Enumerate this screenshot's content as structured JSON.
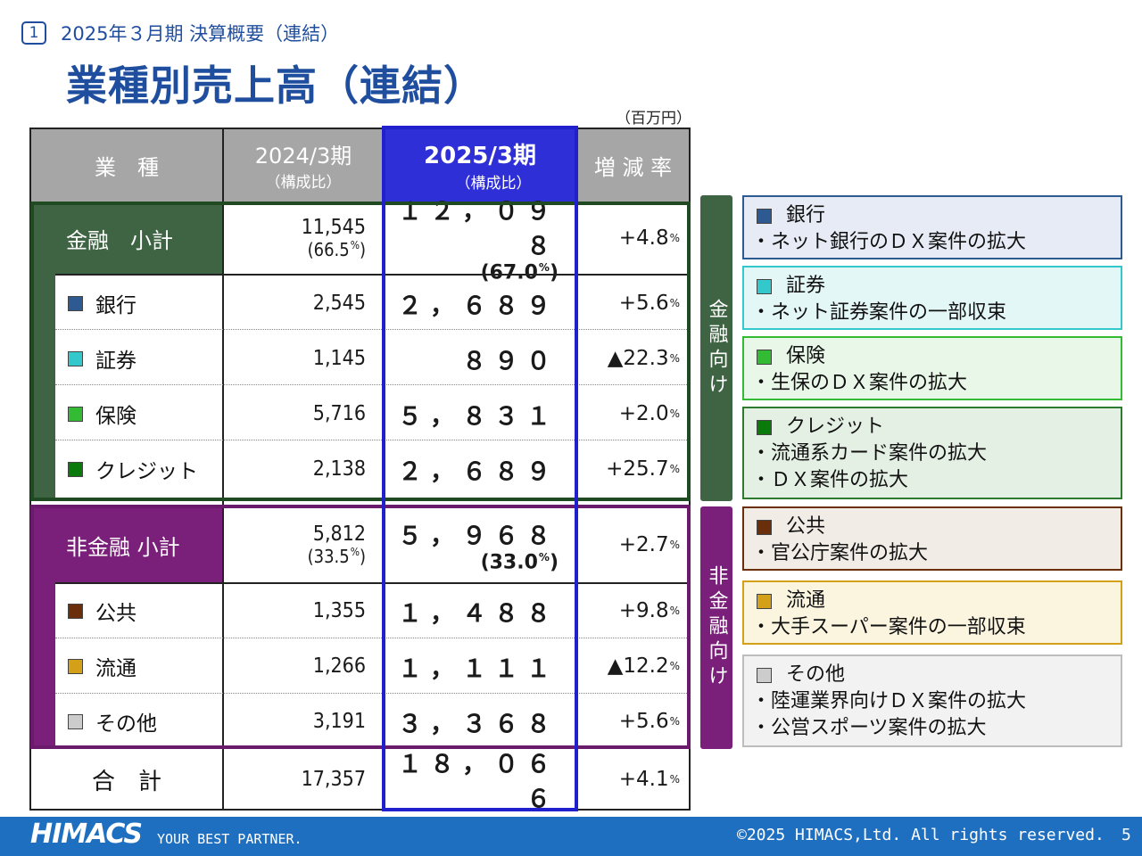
{
  "header": {
    "section_number": "1",
    "subtitle": "2025年３月期 決算概要（連結）",
    "title": "業種別売上高（連結）",
    "unit": "（百万円）"
  },
  "table": {
    "col_category": "業　種",
    "col_prev": "2024/3期",
    "col_prev_sub": "（構成比）",
    "col_curr": "2025/3期",
    "col_curr_sub": "（構成比）",
    "col_rate": "増 減 率",
    "pct_sign": "%",
    "finance_subtotal": {
      "label": "金融　小計",
      "prev": "11,545",
      "prev_ratio": "(66.5",
      "curr": "１２，０９８",
      "curr_ratio": "(67.0",
      "rate": "+4.8"
    },
    "finance_rows": [
      {
        "label": "銀行",
        "color": "#2e5a92",
        "prev": "2,545",
        "curr": "２，６８９",
        "rate": "+5.6"
      },
      {
        "label": "証券",
        "color": "#33c8cc",
        "prev": "1,145",
        "curr": "８９０",
        "rate": "▲22.3"
      },
      {
        "label": "保険",
        "color": "#33bb33",
        "prev": "5,716",
        "curr": "５，８３１",
        "rate": "+2.0"
      },
      {
        "label": "クレジット",
        "color": "#0a7a0a",
        "prev": "2,138",
        "curr": "２，６８９",
        "rate": "+25.7"
      }
    ],
    "nonfinance_subtotal": {
      "label": "非金融 小計",
      "prev": "5,812",
      "prev_ratio": "(33.5",
      "curr": "５，９６８",
      "curr_ratio": "(33.0",
      "rate": "+2.7"
    },
    "nonfinance_rows": [
      {
        "label": "公共",
        "color": "#6b2e0a",
        "prev": "1,355",
        "curr": "１，４８８",
        "rate": "+9.8"
      },
      {
        "label": "流通",
        "color": "#d4a017",
        "prev": "1,266",
        "curr": "１，１１１",
        "rate": "▲12.2"
      },
      {
        "label": "その他",
        "color": "#cccccc",
        "prev": "3,191",
        "curr": "３，３６８",
        "rate": "+5.6"
      }
    ],
    "total": {
      "label": "合　計",
      "prev": "17,357",
      "curr": "１８，０６６",
      "rate": "+4.1"
    }
  },
  "sidebars": {
    "finance": "金融向け",
    "nonfinance": "非金融向け"
  },
  "notes": [
    {
      "title": "銀行",
      "lines": [
        "・ネット銀行のＤＸ案件の拡大"
      ]
    },
    {
      "title": "証券",
      "lines": [
        "・ネット証券案件の一部収束"
      ]
    },
    {
      "title": "保険",
      "lines": [
        "・生保のＤＸ案件の拡大"
      ]
    },
    {
      "title": "クレジット",
      "lines": [
        "・流通系カード案件の拡大",
        "・ＤＸ案件の拡大"
      ]
    },
    {
      "title": "公共",
      "lines": [
        "・官公庁案件の拡大"
      ]
    },
    {
      "title": "流通",
      "lines": [
        "・大手スーパー案件の一部収束"
      ]
    },
    {
      "title": "その他",
      "lines": [
        "・陸運業界向けＤＸ案件の拡大",
        "・公営スポーツ案件の拡大"
      ]
    }
  ],
  "colors": {
    "finance_green": "#3f6443",
    "nonfinance_purple": "#7a1f7a",
    "highlight_blue": "#2020cc",
    "title_blue": "#1f4e9e"
  },
  "footer": {
    "logo": "HIMACS",
    "tagline": "YOUR BEST PARTNER.",
    "copyright": "©2025 HIMACS,Ltd. All rights reserved.",
    "page": "5"
  }
}
